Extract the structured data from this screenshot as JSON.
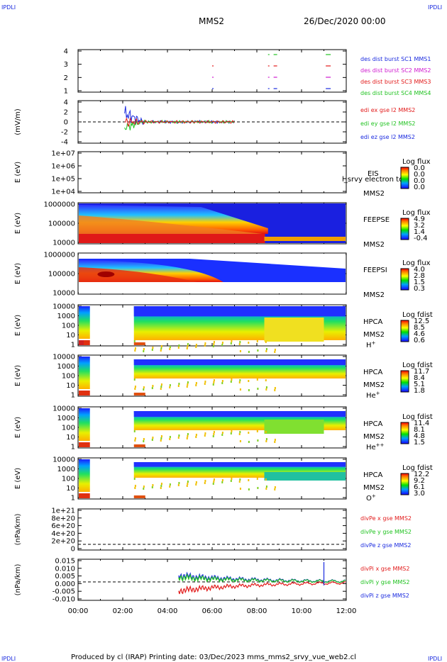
{
  "header": {
    "corner_left_top": "IPDLI",
    "corner_right_top": "IPDLI",
    "corner_left_bottom": "IPDLI",
    "corner_right_bottom": "IPDLI",
    "mission": "MMS2",
    "datetime": "26/Dec/2020 00:00"
  },
  "footer": {
    "text": "Produced by cl (IRAP)   Printing date: 03/Dec/2023   mms_mms2_srvy_vue_web2.cl"
  },
  "colors": {
    "blue": "#1a2adf",
    "green": "#22c322",
    "red": "#e21a1a",
    "magenta": "#d01ad0",
    "orange": "#f5a800"
  },
  "chart_data": [
    {
      "type": "line",
      "panel": "burst",
      "xlim": [
        "00:00",
        "12:00"
      ],
      "ylim": [
        0.5,
        4.5
      ],
      "yticks": [
        "1",
        "2",
        "3",
        "4"
      ],
      "series": [
        {
          "name": "des dist burst SC1 MMS1",
          "color": "#1a2adf",
          "level": 1,
          "x": [
            "06:00",
            "08:30",
            "08:45",
            "11:05"
          ]
        },
        {
          "name": "des dist burst SC2 MMS2",
          "color": "#d01ad0",
          "level": 2,
          "x": [
            "06:00",
            "08:30",
            "08:45",
            "11:05"
          ]
        },
        {
          "name": "des dist burst SC3 MMS3",
          "color": "#e21a1a",
          "level": 3,
          "x": [
            "06:00",
            "08:30",
            "08:45",
            "11:05"
          ]
        },
        {
          "name": "des dist burst SC4 MMS4",
          "color": "#22c322",
          "level": 4,
          "x": [
            "08:30",
            "08:45",
            "11:05"
          ]
        }
      ]
    },
    {
      "type": "line",
      "panel": "edi",
      "ylabel": "(mV/m)",
      "xlim": [
        "00:00",
        "12:00"
      ],
      "ylim": [
        -6,
        6
      ],
      "yticks": [
        "4",
        "2",
        "0",
        "-2",
        "-4"
      ],
      "series": [
        {
          "name": "edi ex gse l2 MMS2",
          "color": "#e21a1a"
        },
        {
          "name": "edi ey gse l2 MMS2",
          "color": "#22c322"
        },
        {
          "name": "edi ez gse l2 MMS2",
          "color": "#1a2adf"
        }
      ]
    },
    {
      "type": "heatmap",
      "panel": "eis",
      "ylabel": "E (eV)",
      "yticks": [
        "1e+07",
        "1e+06",
        "1e+05",
        "1e+04"
      ],
      "labels": [
        "EIS",
        "MMS2"
      ],
      "overlay_text": "l_srvy electron to",
      "colorbar": {
        "title": "Log flux",
        "ticks": [
          "0.0",
          "0.0",
          "0.0",
          "0.0"
        ]
      }
    },
    {
      "type": "heatmap",
      "panel": "feepse",
      "ylabel": "E (eV)",
      "yticks": [
        "1000000",
        "100000",
        "10000"
      ],
      "labels": [
        "FEEPSE",
        "MMS2"
      ],
      "colorbar": {
        "title": "Log flux",
        "ticks": [
          "4.9",
          "3.2",
          "1.4",
          "-0.4"
        ]
      }
    },
    {
      "type": "heatmap",
      "panel": "feepsi",
      "ylabel": "E (eV)",
      "yticks": [
        "1000000",
        "100000",
        "10000"
      ],
      "labels": [
        "FEEPSI",
        "MMS2"
      ],
      "colorbar": {
        "title": "Log flux",
        "ticks": [
          "4.0",
          "2.8",
          "1.5",
          "0.3"
        ]
      }
    },
    {
      "type": "heatmap",
      "panel": "hpca_h",
      "ylabel": "E (eV)",
      "yticks": [
        "10000",
        "1000",
        "100",
        "10",
        "1"
      ],
      "labels": [
        "HPCA",
        "MMS2",
        "H+"
      ],
      "colorbar": {
        "title": "Log fdist",
        "ticks": [
          "12.5",
          "8.5",
          "4.6",
          "0.6"
        ]
      }
    },
    {
      "type": "heatmap",
      "panel": "hpca_he",
      "ylabel": "E (eV)",
      "yticks": [
        "10000",
        "1000",
        "100",
        "10",
        "1"
      ],
      "labels": [
        "HPCA",
        "MMS2",
        "He+"
      ],
      "colorbar": {
        "title": "Log fdist",
        "ticks": [
          "11.7",
          "8.4",
          "5.1",
          "1.8"
        ]
      }
    },
    {
      "type": "heatmap",
      "panel": "hpca_hepp",
      "ylabel": "E (eV)",
      "yticks": [
        "10000",
        "1000",
        "100",
        "10",
        "1"
      ],
      "labels": [
        "HPCA",
        "MMS2",
        "He++"
      ],
      "colorbar": {
        "title": "Log fdist",
        "ticks": [
          "11.4",
          "8.1",
          "4.8",
          "1.5"
        ]
      }
    },
    {
      "type": "heatmap",
      "panel": "hpca_o",
      "ylabel": "E (eV)",
      "yticks": [
        "10000",
        "1000",
        "100",
        "10",
        "1"
      ],
      "labels": [
        "HPCA",
        "MMS2",
        "O+"
      ],
      "colorbar": {
        "title": "Log fdist",
        "ticks": [
          "12.2",
          "9.2",
          "6.1",
          "3.0"
        ]
      }
    },
    {
      "type": "line",
      "panel": "divpe",
      "ylabel": "(nPa/km)",
      "yticks": [
        "1e+21",
        "8e+20",
        "6e+20",
        "4e+20",
        "2e+20",
        "0"
      ],
      "series": [
        {
          "name": "divPe x gse MMS2",
          "color": "#e21a1a"
        },
        {
          "name": "divPe y gse MMS2",
          "color": "#22c322"
        },
        {
          "name": "divPe z gse MMS2",
          "color": "#1a2adf"
        }
      ]
    },
    {
      "type": "line",
      "panel": "divpi",
      "ylabel": "(nPa/km)",
      "ylim": [
        -0.012,
        0.016
      ],
      "yticks": [
        "0.015",
        "0.010",
        "0.005",
        "0.000",
        "-0.005",
        "-0.010"
      ],
      "series": [
        {
          "name": "divPi x gse MMS2",
          "color": "#e21a1a"
        },
        {
          "name": "divPi y gse MMS2",
          "color": "#22c322"
        },
        {
          "name": "divPi z gse MMS2",
          "color": "#1a2adf"
        }
      ]
    }
  ],
  "xaxis": {
    "ticks": [
      "00:00",
      "02:00",
      "04:00",
      "06:00",
      "08:00",
      "10:00",
      "12:00"
    ]
  }
}
